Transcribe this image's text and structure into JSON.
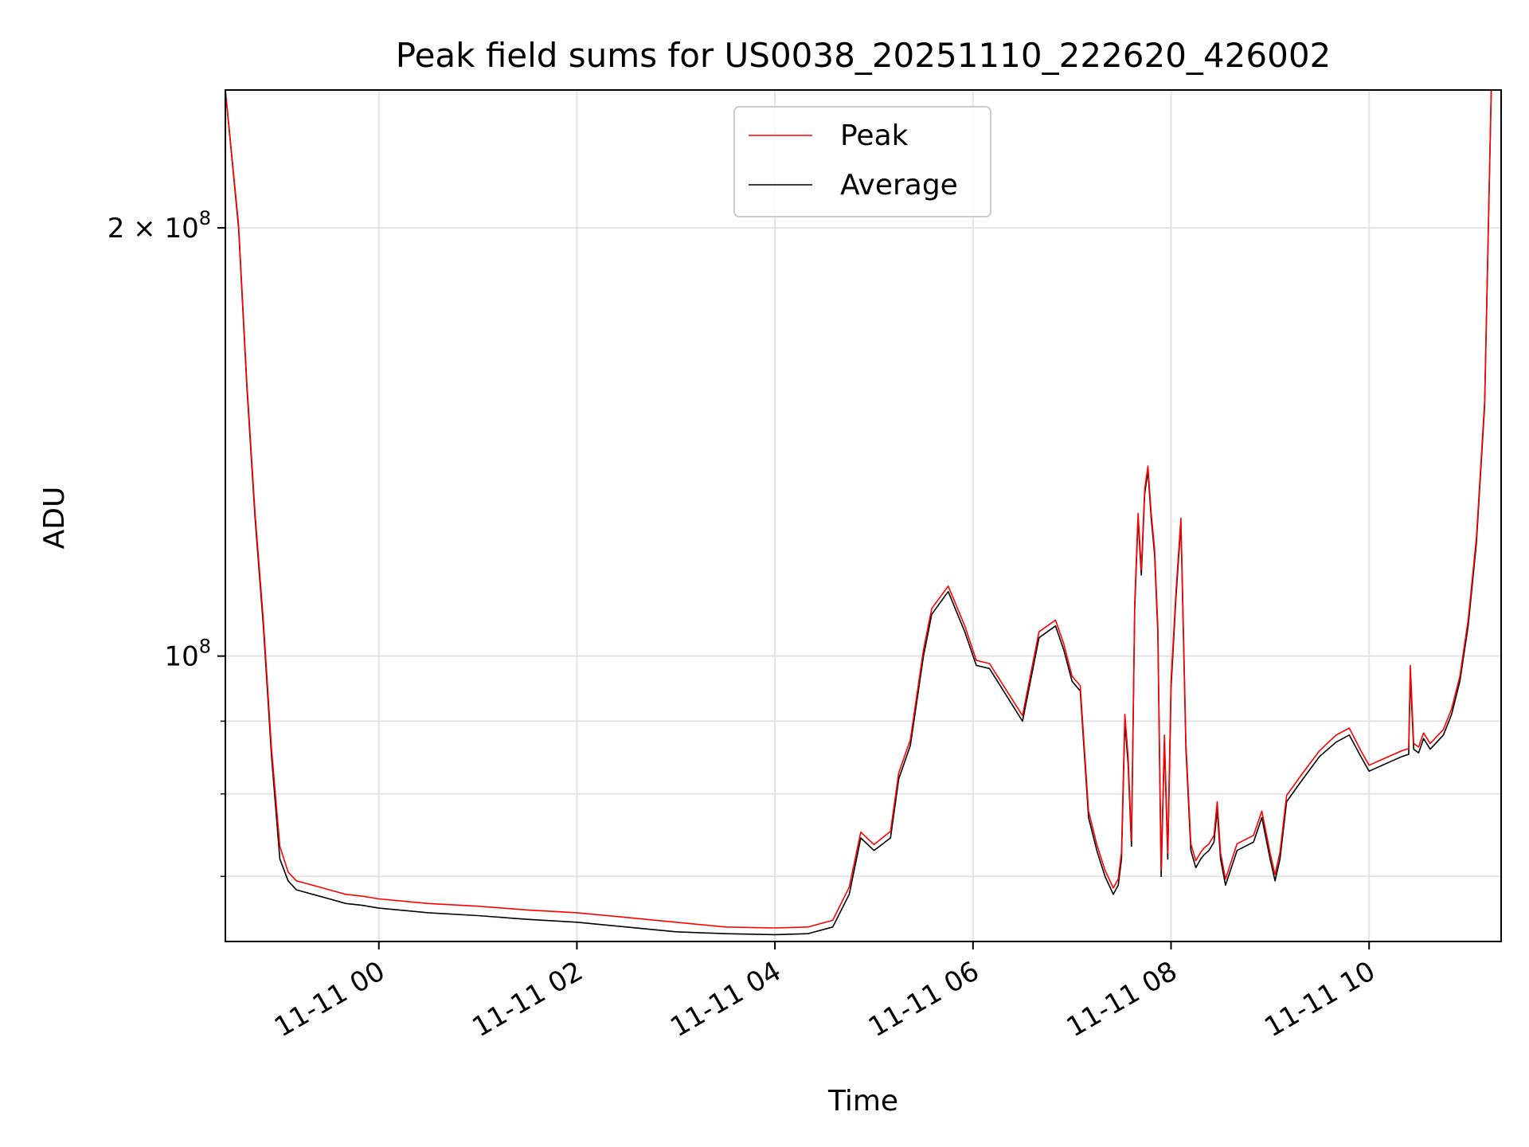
{
  "chart_data": {
    "type": "line",
    "title": "Peak field sums for US0038_20251110_222620_426002",
    "xlabel": "Time",
    "ylabel": "ADU",
    "y_scale": "log",
    "ylim": [
      63000000,
      250000000
    ],
    "xlim": [
      "2025-11-10 22:27",
      "2025-11-11 11:20"
    ],
    "grid": true,
    "legend_position": "top-center",
    "colors": {
      "Peak": "#ff0000",
      "Average": "#000000"
    },
    "x_ticks": [
      {
        "value": "2025-11-11 00:00",
        "label": "11-11 00"
      },
      {
        "value": "2025-11-11 02:00",
        "label": "11-11 02"
      },
      {
        "value": "2025-11-11 04:00",
        "label": "11-11 04"
      },
      {
        "value": "2025-11-11 06:00",
        "label": "11-11 06"
      },
      {
        "value": "2025-11-11 08:00",
        "label": "11-11 08"
      },
      {
        "value": "2025-11-11 10:00",
        "label": "11-11 10"
      }
    ],
    "y_ticks_major": [
      {
        "value": 100000000,
        "base": "10",
        "exp": "8",
        "coef": ""
      },
      {
        "value": 200000000,
        "base": "10",
        "exp": "8",
        "coef": "2 × "
      }
    ],
    "y_ticks_minor": [
      70000000,
      80000000,
      90000000
    ],
    "series": [
      {
        "name": "Average",
        "x": [
          "2025-11-10 22:27",
          "2025-11-10 22:35",
          "2025-11-10 22:40",
          "2025-11-10 22:45",
          "2025-11-10 22:50",
          "2025-11-10 22:55",
          "2025-11-10 23:00",
          "2025-11-10 23:05",
          "2025-11-10 23:10",
          "2025-11-10 23:20",
          "2025-11-10 23:30",
          "2025-11-10 23:40",
          "2025-11-10 23:50",
          "2025-11-11 00:00",
          "2025-11-11 00:30",
          "2025-11-11 01:00",
          "2025-11-11 01:30",
          "2025-11-11 02:00",
          "2025-11-11 02:30",
          "2025-11-11 03:00",
          "2025-11-11 03:30",
          "2025-11-11 04:00",
          "2025-11-11 04:20",
          "2025-11-11 04:35",
          "2025-11-11 04:45",
          "2025-11-11 04:52",
          "2025-11-11 05:00",
          "2025-11-11 05:10",
          "2025-11-11 05:15",
          "2025-11-11 05:22",
          "2025-11-11 05:30",
          "2025-11-11 05:35",
          "2025-11-11 05:45",
          "2025-11-11 05:55",
          "2025-11-11 06:02",
          "2025-11-11 06:10",
          "2025-11-11 06:30",
          "2025-11-11 06:40",
          "2025-11-11 06:45",
          "2025-11-11 06:50",
          "2025-11-11 06:55",
          "2025-11-11 07:00",
          "2025-11-11 07:05",
          "2025-11-11 07:10",
          "2025-11-11 07:15",
          "2025-11-11 07:20",
          "2025-11-11 07:25",
          "2025-11-11 07:28",
          "2025-11-11 07:30",
          "2025-11-11 07:32",
          "2025-11-11 07:34",
          "2025-11-11 07:36",
          "2025-11-11 07:38",
          "2025-11-11 07:40",
          "2025-11-11 07:42",
          "2025-11-11 07:44",
          "2025-11-11 07:46",
          "2025-11-11 07:48",
          "2025-11-11 07:50",
          "2025-11-11 07:52",
          "2025-11-11 07:54",
          "2025-11-11 07:56",
          "2025-11-11 07:58",
          "2025-11-11 08:00",
          "2025-11-11 08:03",
          "2025-11-11 08:06",
          "2025-11-11 08:09",
          "2025-11-11 08:12",
          "2025-11-11 08:15",
          "2025-11-11 08:18",
          "2025-11-11 08:20",
          "2025-11-11 08:23",
          "2025-11-11 08:26",
          "2025-11-11 08:28",
          "2025-11-11 08:30",
          "2025-11-11 08:33",
          "2025-11-11 08:40",
          "2025-11-11 08:50",
          "2025-11-11 08:55",
          "2025-11-11 09:00",
          "2025-11-11 09:03",
          "2025-11-11 09:06",
          "2025-11-11 09:10",
          "2025-11-11 09:20",
          "2025-11-11 09:30",
          "2025-11-11 09:40",
          "2025-11-11 09:48",
          "2025-11-11 09:55",
          "2025-11-11 10:00",
          "2025-11-11 10:10",
          "2025-11-11 10:20",
          "2025-11-11 10:24",
          "2025-11-11 10:25",
          "2025-11-11 10:27",
          "2025-11-11 10:30",
          "2025-11-11 10:33",
          "2025-11-11 10:37",
          "2025-11-11 10:45",
          "2025-11-11 10:50",
          "2025-11-11 10:55",
          "2025-11-11 11:00",
          "2025-11-11 11:05",
          "2025-11-11 11:10",
          "2025-11-11 11:14"
        ],
        "values": [
          250000000,
          200000000,
          155000000,
          125000000,
          105000000,
          85000000,
          72000000,
          69500000,
          68500000,
          68000000,
          67500000,
          67000000,
          66800000,
          66500000,
          66000000,
          65700000,
          65300000,
          65000000,
          64500000,
          64000000,
          63800000,
          63700000,
          63800000,
          64500000,
          68000000,
          74500000,
          73000000,
          74500000,
          82000000,
          86500000,
          100000000,
          107000000,
          111000000,
          104000000,
          98500000,
          98000000,
          90000000,
          103000000,
          104000000,
          105000000,
          101000000,
          96000000,
          94500000,
          77000000,
          73000000,
          70000000,
          68000000,
          69000000,
          72000000,
          90000000,
          84000000,
          73500000,
          108000000,
          125000000,
          114000000,
          130000000,
          135000000,
          125000000,
          118000000,
          104000000,
          70000000,
          87000000,
          72000000,
          95000000,
          110000000,
          124000000,
          86000000,
          73000000,
          71000000,
          72000000,
          72500000,
          73000000,
          74000000,
          78000000,
          72000000,
          69000000,
          73000000,
          74000000,
          77000000,
          72000000,
          69500000,
          72000000,
          79000000,
          82000000,
          85000000,
          87000000,
          88000000,
          85000000,
          83000000,
          84000000,
          85000000,
          85300000,
          97000000,
          86000000,
          85500000,
          87500000,
          86000000,
          88000000,
          91000000,
          96000000,
          105000000,
          120000000,
          150000000,
          250000000
        ]
      },
      {
        "name": "Peak",
        "x": [
          "2025-11-10 22:27",
          "2025-11-10 22:35",
          "2025-11-10 22:40",
          "2025-11-10 22:45",
          "2025-11-10 22:50",
          "2025-11-10 22:55",
          "2025-11-10 23:00",
          "2025-11-10 23:05",
          "2025-11-10 23:10",
          "2025-11-10 23:20",
          "2025-11-10 23:30",
          "2025-11-10 23:40",
          "2025-11-10 23:50",
          "2025-11-11 00:00",
          "2025-11-11 00:30",
          "2025-11-11 01:00",
          "2025-11-11 01:30",
          "2025-11-11 02:00",
          "2025-11-11 02:30",
          "2025-11-11 03:00",
          "2025-11-11 03:30",
          "2025-11-11 04:00",
          "2025-11-11 04:20",
          "2025-11-11 04:35",
          "2025-11-11 04:45",
          "2025-11-11 04:52",
          "2025-11-11 05:00",
          "2025-11-11 05:10",
          "2025-11-11 05:15",
          "2025-11-11 05:22",
          "2025-11-11 05:30",
          "2025-11-11 05:35",
          "2025-11-11 05:45",
          "2025-11-11 05:55",
          "2025-11-11 06:02",
          "2025-11-11 06:10",
          "2025-11-11 06:30",
          "2025-11-11 06:40",
          "2025-11-11 06:45",
          "2025-11-11 06:50",
          "2025-11-11 06:55",
          "2025-11-11 07:00",
          "2025-11-11 07:05",
          "2025-11-11 07:10",
          "2025-11-11 07:15",
          "2025-11-11 07:20",
          "2025-11-11 07:25",
          "2025-11-11 07:28",
          "2025-11-11 07:30",
          "2025-11-11 07:32",
          "2025-11-11 07:34",
          "2025-11-11 07:36",
          "2025-11-11 07:38",
          "2025-11-11 07:40",
          "2025-11-11 07:42",
          "2025-11-11 07:44",
          "2025-11-11 07:46",
          "2025-11-11 07:48",
          "2025-11-11 07:50",
          "2025-11-11 07:52",
          "2025-11-11 07:54",
          "2025-11-11 07:56",
          "2025-11-11 07:58",
          "2025-11-11 08:00",
          "2025-11-11 08:03",
          "2025-11-11 08:06",
          "2025-11-11 08:09",
          "2025-11-11 08:12",
          "2025-11-11 08:15",
          "2025-11-11 08:18",
          "2025-11-11 08:20",
          "2025-11-11 08:23",
          "2025-11-11 08:26",
          "2025-11-11 08:28",
          "2025-11-11 08:30",
          "2025-11-11 08:33",
          "2025-11-11 08:40",
          "2025-11-11 08:50",
          "2025-11-11 08:55",
          "2025-11-11 09:00",
          "2025-11-11 09:03",
          "2025-11-11 09:06",
          "2025-11-11 09:10",
          "2025-11-11 09:20",
          "2025-11-11 09:30",
          "2025-11-11 09:40",
          "2025-11-11 09:48",
          "2025-11-11 09:55",
          "2025-11-11 10:00",
          "2025-11-11 10:10",
          "2025-11-11 10:20",
          "2025-11-11 10:24",
          "2025-11-11 10:25",
          "2025-11-11 10:27",
          "2025-11-11 10:30",
          "2025-11-11 10:33",
          "2025-11-11 10:37",
          "2025-11-11 10:45",
          "2025-11-11 10:50",
          "2025-11-11 10:55",
          "2025-11-11 11:00",
          "2025-11-11 11:05",
          "2025-11-11 11:10",
          "2025-11-11 11:14"
        ],
        "values": [
          250000000,
          201000000,
          156000000,
          126000000,
          106000000,
          86000000,
          73500000,
          70500000,
          69500000,
          69000000,
          68500000,
          68000000,
          67800000,
          67500000,
          67000000,
          66700000,
          66300000,
          66000000,
          65500000,
          65000000,
          64500000,
          64400000,
          64500000,
          65200000,
          68800000,
          75200000,
          73700000,
          75300000,
          82800000,
          87300000,
          101000000,
          108000000,
          112000000,
          105000000,
          99300000,
          98800000,
          90800000,
          104000000,
          105000000,
          106000000,
          102000000,
          96800000,
          95300000,
          77800000,
          73700000,
          70700000,
          68700000,
          69700000,
          72800000,
          91000000,
          85000000,
          74200000,
          109000000,
          126000000,
          115000000,
          131000000,
          136000000,
          126000000,
          119000000,
          105000000,
          70700000,
          88000000,
          72700000,
          96000000,
          111000000,
          125000000,
          86800000,
          73800000,
          71800000,
          72800000,
          73300000,
          73800000,
          74800000,
          79000000,
          72700000,
          69700000,
          73800000,
          74800000,
          77800000,
          72700000,
          70200000,
          72800000,
          79800000,
          82800000,
          85800000,
          88000000,
          89000000,
          85800000,
          83800000,
          84800000,
          85800000,
          86100000,
          98500000,
          86800000,
          86300000,
          88300000,
          86800000,
          88800000,
          91800000,
          96800000,
          106000000,
          121000000,
          151000000,
          250000000
        ]
      }
    ]
  }
}
